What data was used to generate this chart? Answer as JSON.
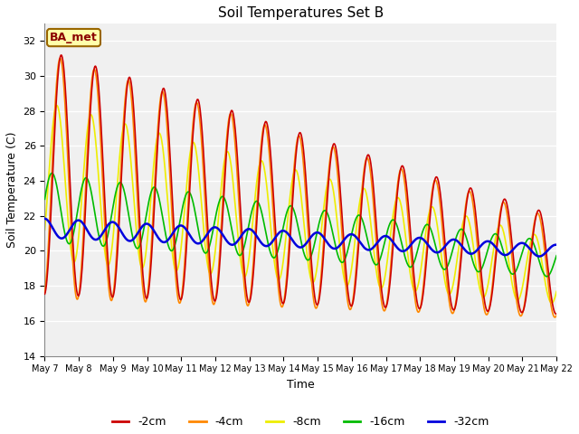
{
  "title": "Soil Temperatures Set B",
  "xlabel": "Time",
  "ylabel": "Soil Temperature (C)",
  "ylim": [
    14,
    33
  ],
  "yticks": [
    14,
    16,
    18,
    20,
    22,
    24,
    26,
    28,
    30,
    32
  ],
  "annotation": "BA_met",
  "fig_bg": "#ffffff",
  "plot_bg": "#f0f0f0",
  "series": {
    "-2cm": {
      "color": "#cc0000",
      "lw": 1.2
    },
    "-4cm": {
      "color": "#ff8800",
      "lw": 1.2
    },
    "-8cm": {
      "color": "#eeee00",
      "lw": 1.2
    },
    "-16cm": {
      "color": "#00bb00",
      "lw": 1.2
    },
    "-32cm": {
      "color": "#0000dd",
      "lw": 1.8
    }
  },
  "date_labels": [
    "May 7",
    "May 8",
    "May 9",
    "May 10",
    "May 11",
    "May 12",
    "May 13",
    "May 14",
    "May 15",
    "May 16",
    "May 17",
    "May 18",
    "May 19",
    "May 20",
    "May 21",
    "May 22"
  ]
}
